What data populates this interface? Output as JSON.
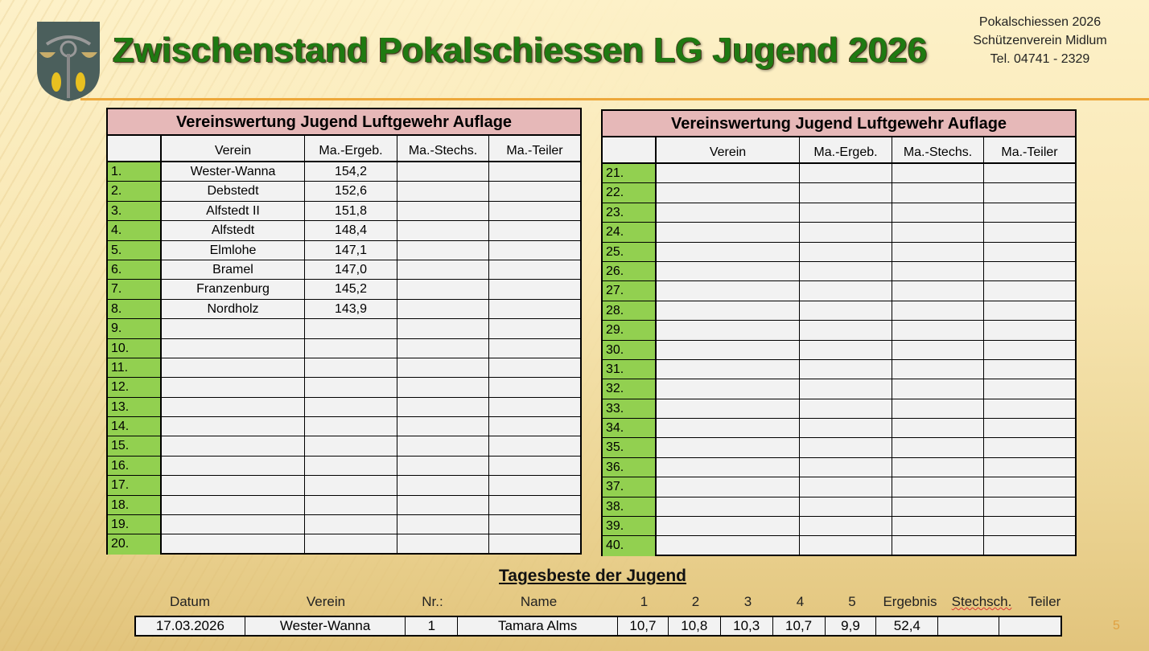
{
  "header": {
    "title": "Zwischenstand Pokalschiessen LG Jugend 2026",
    "info": [
      "Pokalschiessen 2026",
      "Schützenverein Midlum",
      "Tel. 04741 - 2329"
    ],
    "crest": "coat-of-arms"
  },
  "colors": {
    "title": "#1f7a12",
    "rank_bg": "#92d050",
    "caption_bg": "#e6b8b8",
    "rule": "#eda83a"
  },
  "tables": [
    {
      "caption": "Vereinswertung Jugend Luftgewehr Auflage",
      "columns": [
        "",
        "Verein",
        "Ma.-Ergeb.",
        "Ma.-Stechs.",
        "Ma.-Teiler"
      ],
      "rows": [
        [
          "1.",
          "Wester-Wanna",
          "154,2",
          "",
          ""
        ],
        [
          "2.",
          "Debstedt",
          "152,6",
          "",
          ""
        ],
        [
          "3.",
          "Alfstedt II",
          "151,8",
          "",
          ""
        ],
        [
          "4.",
          "Alfstedt",
          "148,4",
          "",
          ""
        ],
        [
          "5.",
          "Elmlohe",
          "147,1",
          "",
          ""
        ],
        [
          "6.",
          "Bramel",
          "147,0",
          "",
          ""
        ],
        [
          "7.",
          "Franzenburg",
          "145,2",
          "",
          ""
        ],
        [
          "8.",
          "Nordholz",
          "143,9",
          "",
          ""
        ],
        [
          "9.",
          "",
          "",
          "",
          ""
        ],
        [
          "10.",
          "",
          "",
          "",
          ""
        ],
        [
          "11.",
          "",
          "",
          "",
          ""
        ],
        [
          "12.",
          "",
          "",
          "",
          ""
        ],
        [
          "13.",
          "",
          "",
          "",
          ""
        ],
        [
          "14.",
          "",
          "",
          "",
          ""
        ],
        [
          "15.",
          "",
          "",
          "",
          ""
        ],
        [
          "16.",
          "",
          "",
          "",
          ""
        ],
        [
          "17.",
          "",
          "",
          "",
          ""
        ],
        [
          "18.",
          "",
          "",
          "",
          ""
        ],
        [
          "19.",
          "",
          "",
          "",
          ""
        ],
        [
          "20.",
          "",
          "",
          "",
          ""
        ]
      ]
    },
    {
      "caption": "Vereinswertung Jugend Luftgewehr Auflage",
      "columns": [
        "",
        "Verein",
        "Ma.-Ergeb.",
        "Ma.-Stechs.",
        "Ma.-Teiler"
      ],
      "rows": [
        [
          "21.",
          "",
          "",
          "",
          ""
        ],
        [
          "22.",
          "",
          "",
          "",
          ""
        ],
        [
          "23.",
          "",
          "",
          "",
          ""
        ],
        [
          "24.",
          "",
          "",
          "",
          ""
        ],
        [
          "25.",
          "",
          "",
          "",
          ""
        ],
        [
          "26.",
          "",
          "",
          "",
          ""
        ],
        [
          "27.",
          "",
          "",
          "",
          ""
        ],
        [
          "28.",
          "",
          "",
          "",
          ""
        ],
        [
          "29.",
          "",
          "",
          "",
          ""
        ],
        [
          "30.",
          "",
          "",
          "",
          ""
        ],
        [
          "31.",
          "",
          "",
          "",
          ""
        ],
        [
          "32.",
          "",
          "",
          "",
          ""
        ],
        [
          "33.",
          "",
          "",
          "",
          ""
        ],
        [
          "34.",
          "",
          "",
          "",
          ""
        ],
        [
          "35.",
          "",
          "",
          "",
          ""
        ],
        [
          "36.",
          "",
          "",
          "",
          ""
        ],
        [
          "37.",
          "",
          "",
          "",
          ""
        ],
        [
          "38.",
          "",
          "",
          "",
          ""
        ],
        [
          "39.",
          "",
          "",
          "",
          ""
        ],
        [
          "40.",
          "",
          "",
          "",
          ""
        ]
      ]
    }
  ],
  "tagesbeste": {
    "title": "Tagesbeste der Jugend",
    "columns": [
      "Datum",
      "Verein",
      "Nr.:",
      "Name",
      "1",
      "2",
      "3",
      "4",
      "5",
      "Ergebnis",
      "Stechsch.",
      "Teiler"
    ],
    "row": [
      "17.03.2026",
      "Wester-Wanna",
      "1",
      "Tamara Alms",
      "10,7",
      "10,8",
      "10,3",
      "10,7",
      "9,9",
      "52,4",
      "",
      ""
    ]
  },
  "page_number": "5"
}
